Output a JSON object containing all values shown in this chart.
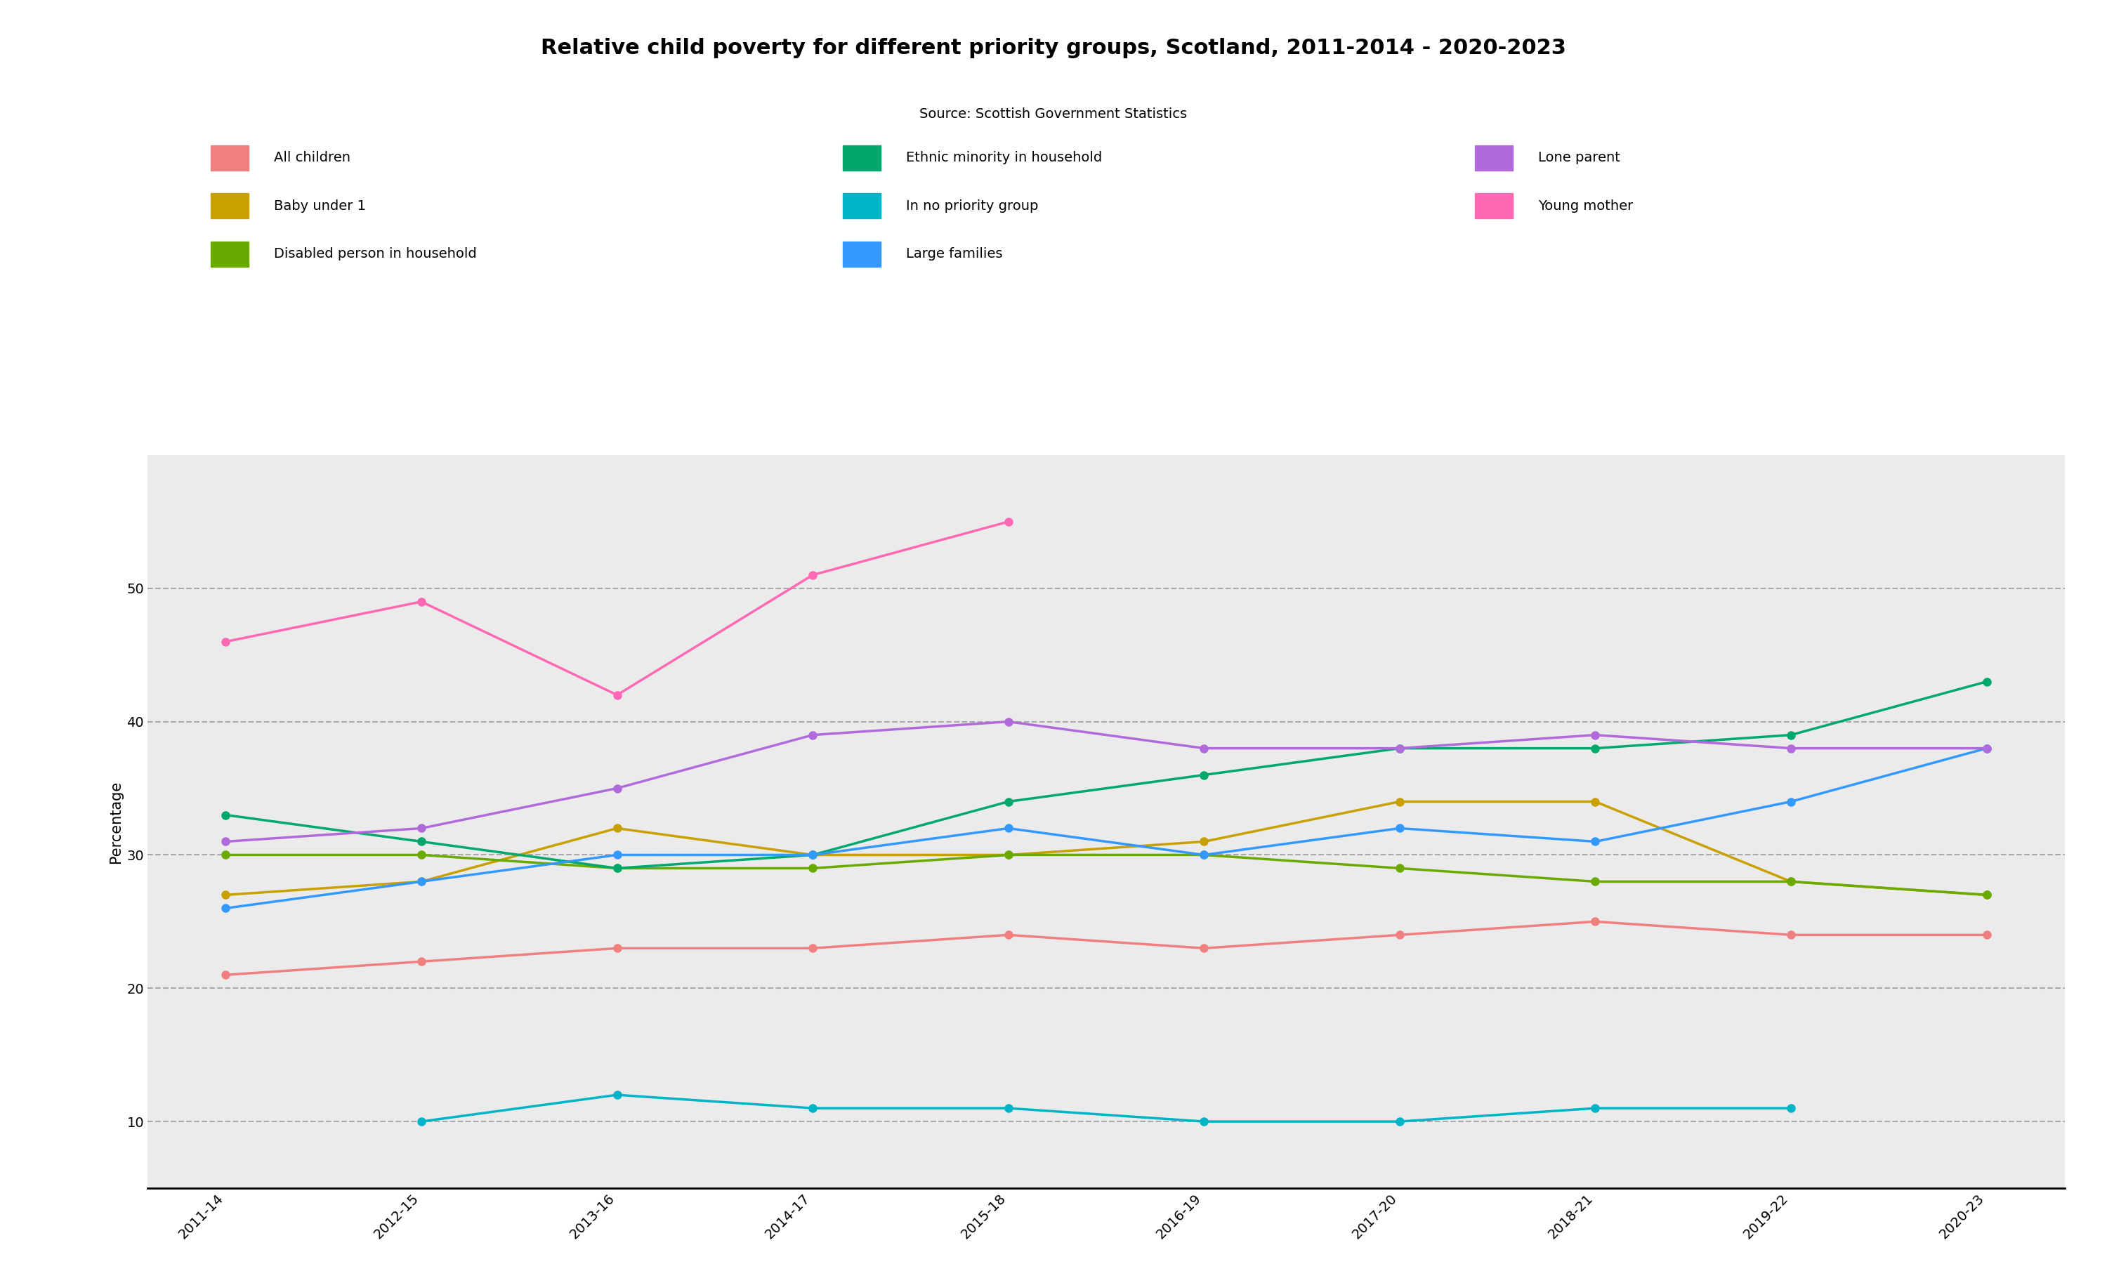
{
  "title": "Relative child poverty for different priority groups, Scotland, 2011-2014 - 2020-2023",
  "subtitle": "Source: Scottish Government Statistics",
  "ylabel": "Percentage",
  "x_labels": [
    "2011-14",
    "2012-15",
    "2013-16",
    "2014-17",
    "2015-18",
    "2016-19",
    "2017-20",
    "2018-21",
    "2019-22",
    "2020-23"
  ],
  "ylim": [
    5,
    60
  ],
  "yticks": [
    10,
    20,
    30,
    40,
    50
  ],
  "background_color": "#ebebeb",
  "series": [
    {
      "name": "All children",
      "color": "#f08080",
      "values": [
        21,
        22,
        23,
        23,
        24,
        23,
        24,
        25,
        24,
        24
      ]
    },
    {
      "name": "Baby under 1",
      "color": "#c8a000",
      "values": [
        27,
        28,
        32,
        30,
        30,
        31,
        34,
        34,
        28,
        27
      ]
    },
    {
      "name": "Disabled person in household",
      "color": "#6aaa00",
      "values": [
        30,
        30,
        29,
        29,
        30,
        30,
        29,
        28,
        28,
        27
      ]
    },
    {
      "name": "Ethnic minority in household",
      "color": "#00a86b",
      "values": [
        33,
        31,
        29,
        30,
        34,
        36,
        38,
        38,
        39,
        43
      ]
    },
    {
      "name": "In no priority group",
      "color": "#00b4c8",
      "values": [
        null,
        10,
        12,
        11,
        11,
        10,
        10,
        11,
        11,
        null
      ]
    },
    {
      "name": "Large families",
      "color": "#3399ff",
      "values": [
        26,
        28,
        30,
        30,
        32,
        30,
        32,
        31,
        34,
        38
      ]
    },
    {
      "name": "Lone parent",
      "color": "#b06adc",
      "values": [
        31,
        32,
        35,
        39,
        40,
        38,
        38,
        39,
        38,
        38
      ]
    },
    {
      "name": "Young mother",
      "color": "#ff69b4",
      "values": [
        46,
        49,
        42,
        51,
        55,
        null,
        null,
        null,
        null,
        null
      ]
    }
  ],
  "legend_row1": [
    "All children",
    "Ethnic minority in household",
    "Lone parent"
  ],
  "legend_row2": [
    "Baby under 1",
    "In no priority group",
    "Young mother"
  ],
  "legend_row3": [
    "Disabled person in household",
    "Large families"
  ],
  "title_fontsize": 22,
  "subtitle_fontsize": 14,
  "label_fontsize": 15,
  "tick_fontsize": 14,
  "legend_fontsize": 14,
  "linewidth": 2.5,
  "markersize": 8
}
